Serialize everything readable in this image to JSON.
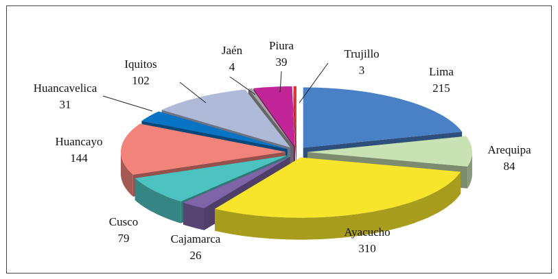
{
  "chart_data": {
    "type": "pie",
    "categories": [
      "Lima",
      "Arequipa",
      "Ayacucho",
      "Cajamarca",
      "Cusco",
      "Huancayo",
      "Huancavelica",
      "Iquitos",
      "Jaén",
      "Piura",
      "Trujillo"
    ],
    "values": [
      215,
      84,
      310,
      26,
      79,
      144,
      31,
      102,
      4,
      39,
      3
    ],
    "colors": [
      "#4a80c6",
      "#c9e2b3",
      "#f7e52b",
      "#8064a8",
      "#4cc3c1",
      "#f2837a",
      "#0a74c4",
      "#aebad8",
      "#a5a5a5",
      "#c22598",
      "#e23030"
    ]
  }
}
